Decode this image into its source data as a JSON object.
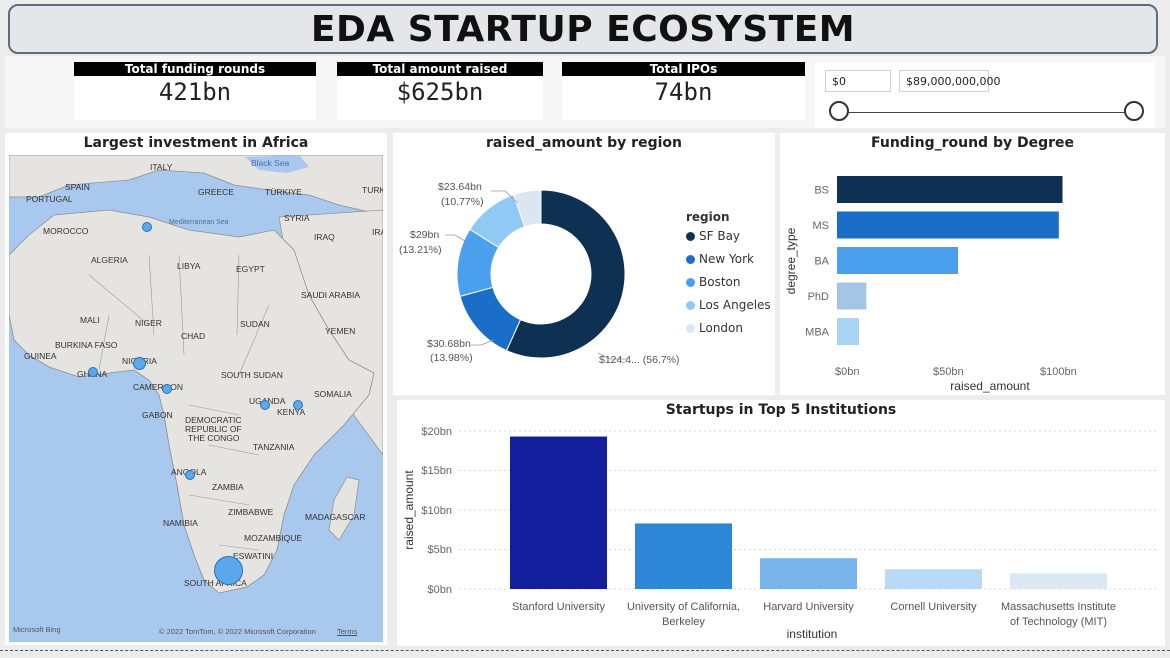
{
  "page": {
    "title": "EDA STARTUP ECOSYSTEM"
  },
  "cards": [
    {
      "label": "Total funding rounds",
      "value": "421bn"
    },
    {
      "label": "Total amount raised",
      "value": "$625bn"
    },
    {
      "label": "Total IPOs",
      "value": "74bn"
    }
  ],
  "slicer": {
    "min_value": "$0",
    "max_value": "$89,000,000,000",
    "range_fraction": [
      0,
      1
    ]
  },
  "map_panel": {
    "title": "Largest investment in Africa",
    "attribution_left": "Microsoft Bing",
    "attribution_right": "© 2022 TomTom, © 2022 Microsoft Corporation",
    "terms": "Terms",
    "labels": {
      "black_sea": "Black Sea",
      "italy": "ITALY",
      "spain": "SPAIN",
      "portugal": "PORTUGAL",
      "greece": "GREECE",
      "turkiye": "TÜRKIYE",
      "turki": "TURKI",
      "mediterranean": "Mediterranean Sea",
      "syria": "SYRIA",
      "morocco": "MOROCCO",
      "iraq": "IRAQ",
      "ira": "IRA",
      "algeria": "ALGERIA",
      "libya": "LIBYA",
      "egypt": "EGYPT",
      "saudi": "SAUDI ARABIA",
      "mali": "MALI",
      "niger": "NIGER",
      "chad": "CHAD",
      "sudan": "SUDAN",
      "yemen": "YEMEN",
      "burkina": "BURKINA FASO",
      "guinea": "GUINEA",
      "nigeria": "NIGERIA",
      "ghana": "GHANA",
      "cameroon": "CAMEROON",
      "south_sudan": "SOUTH SUDAN",
      "somalia": "SOMALIA",
      "uganda": "UGANDA",
      "kenya": "KENYA",
      "gabon": "GABON",
      "drc1": "DEMOCRATIC",
      "drc2": "REPUBLIC OF",
      "drc3": "THE CONGO",
      "tanzania": "TANZANIA",
      "angola": "ANGOLA",
      "zambia": "ZAMBIA",
      "zimbabwe": "ZIMBABWE",
      "madagascar": "MADAGASCAR",
      "namibia": "NAMIBIA",
      "mozambique": "MOZAMBIQUE",
      "eswatini": "ESWATINI",
      "south_africa": "SOUTH AFRICA"
    }
  },
  "donut": {
    "title": "raised_amount by region",
    "legend_title": "region",
    "labels": [
      "$124.4... (56.7%)",
      "$30.68bn",
      "(13.98%)",
      "$29bn",
      "(13.21%)",
      "$23.64bn",
      "(10.77%)"
    ]
  },
  "hbar": {
    "title": "Funding_round by Degree",
    "ylabel": "degree_type",
    "xlabel": "raised_amount",
    "xticks": [
      "$0bn",
      "$50bn",
      "$100bn"
    ]
  },
  "vbar": {
    "title": "Startups in Top 5 Institutions",
    "ylabel": "raised_amount",
    "xlabel": "institution",
    "yticks": [
      "$0bn",
      "$5bn",
      "$10bn",
      "$15bn",
      "$20bn"
    ],
    "category_lines": [
      [
        "Stanford University"
      ],
      [
        "University of California,",
        "Berkeley"
      ],
      [
        "Harvard University"
      ],
      [
        "Cornell University"
      ],
      [
        "Massachusetts Institute",
        "of Technology (MIT)"
      ]
    ]
  },
  "chart_data": [
    {
      "type": "pie",
      "title": "raised_amount by region",
      "legend_title": "region",
      "legend_position": "right",
      "categories": [
        "SF Bay",
        "New York",
        "Boston",
        "Los Angeles",
        "London"
      ],
      "values": [
        124.4,
        30.68,
        29,
        23.64,
        11.6
      ],
      "unit": "$bn",
      "colors": [
        "#0e3052",
        "#1a6ec7",
        "#4aa0ec",
        "#8fc9f4",
        "#dbe6f2"
      ]
    },
    {
      "type": "bar",
      "orientation": "horizontal",
      "title": "Funding_round by Degree",
      "categories": [
        "BS",
        "MS",
        "BA",
        "PhD",
        "MBA"
      ],
      "values": [
        123,
        121,
        66,
        16,
        12
      ],
      "xlim": [
        0,
        120
      ],
      "unit": "$bn",
      "colors": [
        "#0e3052",
        "#1a6ec7",
        "#4aa0ec",
        "#a4c5e4",
        "#a9d4f6"
      ]
    },
    {
      "type": "bar",
      "title": "Startups in Top 5 Institutions",
      "categories": [
        "Stanford University",
        "University of California, Berkeley",
        "Harvard University",
        "Cornell University",
        "Massachusetts Institute of Technology (MIT)"
      ],
      "values": [
        19.3,
        8.3,
        3.9,
        2.5,
        2.0
      ],
      "ylim": [
        0,
        20
      ],
      "unit": "$bn",
      "colors": [
        "#131e9c",
        "#2d86d8",
        "#79b5ea",
        "#b9daf6",
        "#dce9f5"
      ]
    },
    {
      "type": "scatter",
      "title": "Largest investment in Africa",
      "categories": [
        "Algeria",
        "Nigeria",
        "Ghana",
        "Cameroon",
        "Uganda",
        "Kenya",
        "Angola",
        "South Africa"
      ],
      "values": [
        1,
        1.5,
        1,
        1,
        1,
        1,
        1,
        6
      ]
    }
  ]
}
